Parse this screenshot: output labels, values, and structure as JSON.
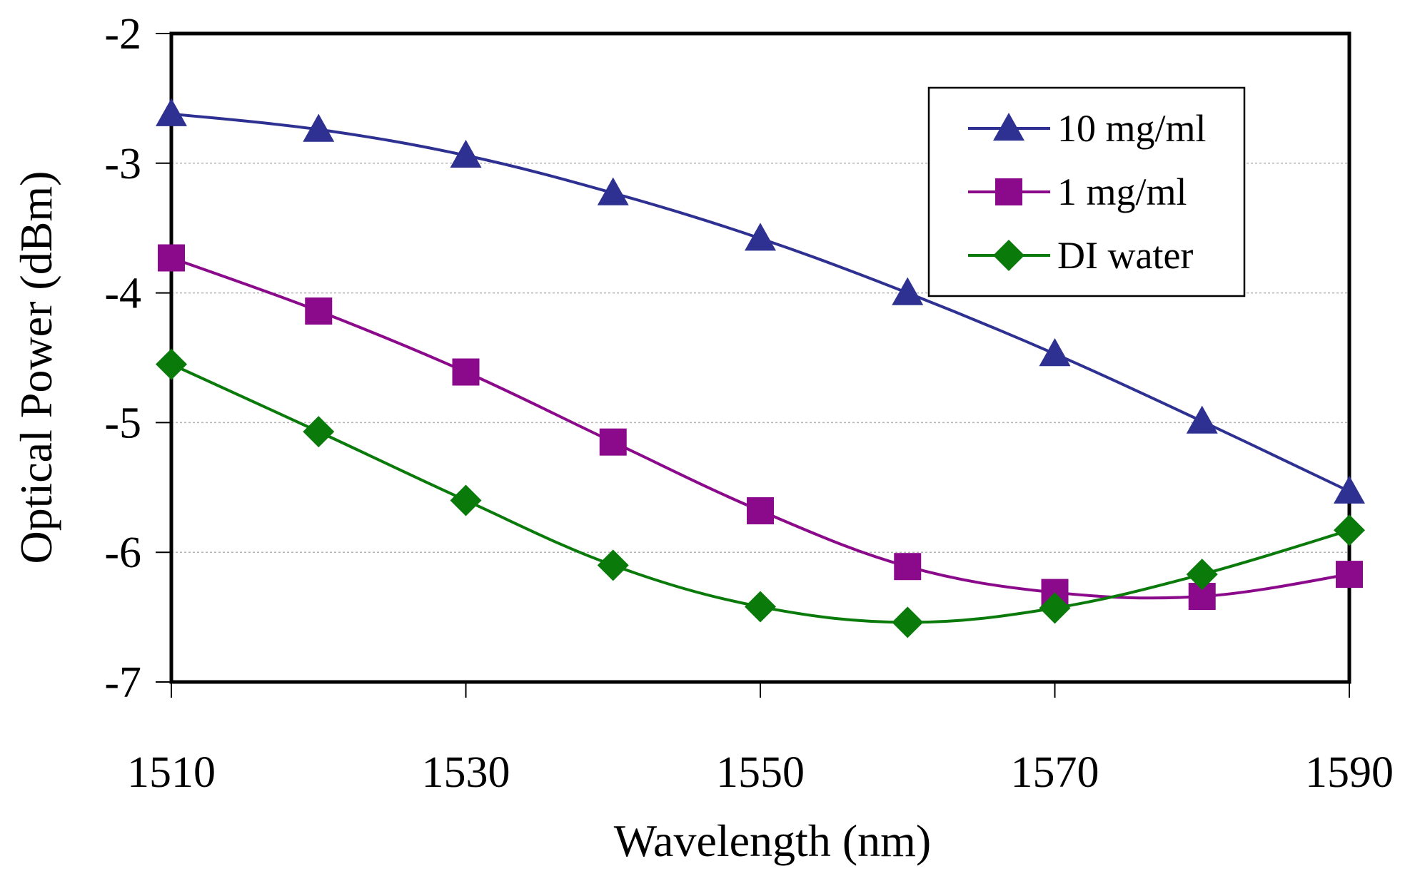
{
  "chart_data": {
    "type": "line",
    "title": "",
    "xlabel": "Wavelength (nm)",
    "ylabel": "Optical Power (dBm)",
    "xlim": [
      1510,
      1590
    ],
    "ylim": [
      -7,
      -2
    ],
    "x_ticks": [
      1510,
      1530,
      1550,
      1570,
      1590
    ],
    "x_tick_labels": [
      "1510",
      "1530",
      "1550",
      "1570",
      "1590"
    ],
    "y_ticks": [
      -2,
      -3,
      -4,
      -5,
      -6,
      -7
    ],
    "y_tick_labels": [
      "-2",
      "-3",
      "-4",
      "-5",
      "-6",
      "-7"
    ],
    "grid": "horizontal",
    "legend_position": "top-right",
    "x": [
      1510,
      1520,
      1530,
      1540,
      1550,
      1560,
      1570,
      1580,
      1590
    ],
    "series": [
      {
        "name": "10 mg/ml",
        "marker": "triangle",
        "color": "#2e3192",
        "values": [
          -2.62,
          -2.74,
          -2.94,
          -3.23,
          -3.58,
          -4.0,
          -4.47,
          -4.99,
          -5.53
        ]
      },
      {
        "name": "1 mg/ml",
        "marker": "square",
        "color": "#8b0a8b",
        "values": [
          -3.73,
          -4.14,
          -4.61,
          -5.15,
          -5.68,
          -6.11,
          -6.31,
          -6.34,
          -6.17
        ]
      },
      {
        "name": "DI water",
        "marker": "diamond",
        "color": "#0a7a0a",
        "values": [
          -4.55,
          -5.07,
          -5.6,
          -6.1,
          -6.42,
          -6.54,
          -6.43,
          -6.17,
          -5.83
        ]
      }
    ]
  }
}
